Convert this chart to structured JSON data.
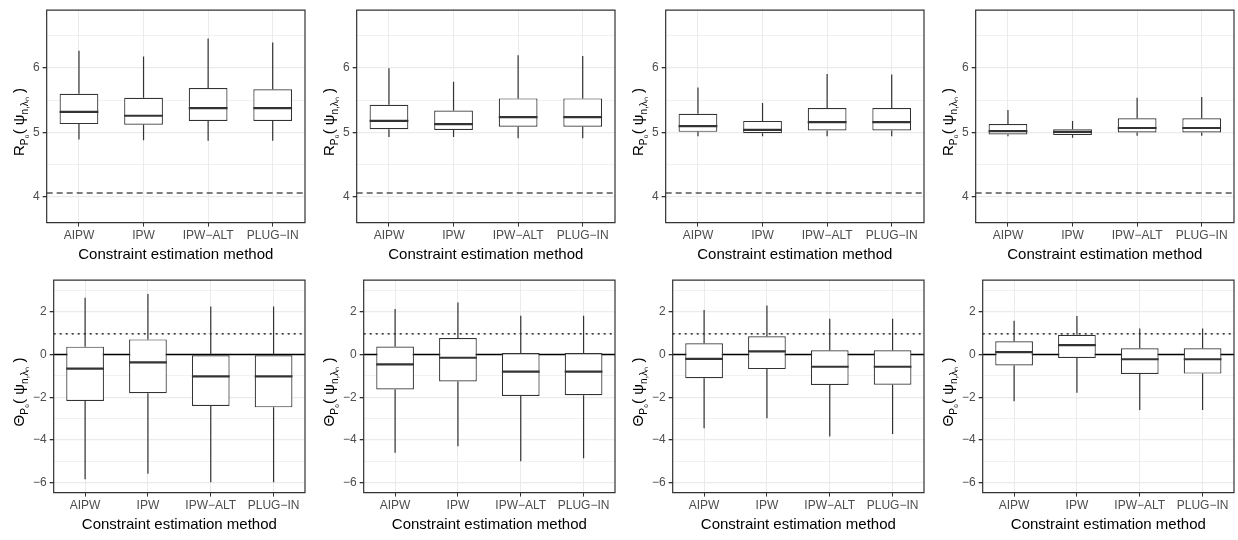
{
  "chart_data": [
    {
      "type": "box",
      "categories": [
        "AIPW",
        "IPW",
        "IPW−ALT",
        "PLUG−IN"
      ],
      "xlabel": "Constraint estimation method",
      "ylabel": "R$_{P₀}$( ψ$_{n,λₙ}$ )",
      "ylim": [
        3.6,
        6.9
      ],
      "yticks": [
        4,
        {
          "value": 4.5,
          "label": null
        },
        5,
        {
          "value": 5.5,
          "label": null
        },
        6,
        {
          "value": 6.5,
          "label": null
        }
      ],
      "grid": true,
      "boxes": [
        {
          "low": 4.89,
          "q1": 5.13,
          "median": 5.32,
          "q3": 5.6,
          "high": 6.27
        },
        {
          "low": 4.88,
          "q1": 5.12,
          "median": 5.26,
          "q3": 5.54,
          "high": 6.18
        },
        {
          "low": 4.87,
          "q1": 5.18,
          "median": 5.38,
          "q3": 5.69,
          "high": 6.46
        },
        {
          "low": 4.87,
          "q1": 5.18,
          "median": 5.38,
          "q3": 5.67,
          "high": 6.4
        }
      ],
      "ref_lines": [
        {
          "axis": "y",
          "value": 4.06,
          "label": null,
          "color": "#000000",
          "line_style": "dashed"
        }
      ]
    },
    {
      "type": "box",
      "categories": [
        "AIPW",
        "IPW",
        "IPW−ALT",
        "PLUG−IN"
      ],
      "xlabel": "Constraint estimation method",
      "ylabel": "R$_{P₀}$( ψ$_{n,λₙ}$ )",
      "ylim": [
        3.6,
        6.9
      ],
      "yticks": [
        4,
        {
          "value": 4.5,
          "label": null
        },
        5,
        {
          "value": 5.5,
          "label": null
        },
        6,
        {
          "value": 6.5,
          "label": null
        }
      ],
      "grid": true,
      "boxes": [
        {
          "low": 4.93,
          "q1": 5.05,
          "median": 5.18,
          "q3": 5.43,
          "high": 6.0
        },
        {
          "low": 4.93,
          "q1": 5.04,
          "median": 5.13,
          "q3": 5.34,
          "high": 5.79
        },
        {
          "low": 4.91,
          "q1": 5.09,
          "median": 5.24,
          "q3": 5.53,
          "high": 6.2
        },
        {
          "low": 4.91,
          "q1": 5.09,
          "median": 5.24,
          "q3": 5.53,
          "high": 6.19
        }
      ],
      "ref_lines": [
        {
          "axis": "y",
          "value": 4.06,
          "label": null,
          "color": "#000000",
          "line_style": "dashed"
        }
      ]
    },
    {
      "type": "box",
      "categories": [
        "AIPW",
        "IPW",
        "IPW−ALT",
        "PLUG−IN"
      ],
      "xlabel": "Constraint estimation method",
      "ylabel": "R$_{P₀}$( ψ$_{n,λₙ}$ )",
      "ylim": [
        3.6,
        6.9
      ],
      "yticks": [
        4,
        {
          "value": 4.5,
          "label": null
        },
        5,
        {
          "value": 5.5,
          "label": null
        },
        6,
        {
          "value": 6.5,
          "label": null
        }
      ],
      "grid": true,
      "boxes": [
        {
          "low": 4.94,
          "q1": 5.01,
          "median": 5.1,
          "q3": 5.29,
          "high": 5.7
        },
        {
          "low": 4.94,
          "q1": 4.99,
          "median": 5.04,
          "q3": 5.18,
          "high": 5.46
        },
        {
          "low": 4.94,
          "q1": 5.03,
          "median": 5.16,
          "q3": 5.38,
          "high": 5.91
        },
        {
          "low": 4.94,
          "q1": 5.03,
          "median": 5.16,
          "q3": 5.38,
          "high": 5.9
        }
      ],
      "ref_lines": [
        {
          "axis": "y",
          "value": 4.06,
          "label": null,
          "color": "#000000",
          "line_style": "dashed"
        }
      ]
    },
    {
      "type": "box",
      "categories": [
        "AIPW",
        "IPW",
        "IPW−ALT",
        "PLUG−IN"
      ],
      "xlabel": "Constraint estimation method",
      "ylabel": "R$_{P₀}$( ψ$_{n,λₙ}$ )",
      "ylim": [
        3.6,
        6.9
      ],
      "yticks": [
        4,
        {
          "value": 4.5,
          "label": null
        },
        5,
        {
          "value": 5.5,
          "label": null
        },
        6,
        {
          "value": 6.5,
          "label": null
        }
      ],
      "grid": true,
      "boxes": [
        {
          "low": 4.94,
          "q1": 4.97,
          "median": 5.02,
          "q3": 5.13,
          "high": 5.35
        },
        {
          "low": 4.92,
          "q1": 4.96,
          "median": 5.01,
          "q3": 5.05,
          "high": 5.18
        },
        {
          "low": 4.95,
          "q1": 5.0,
          "median": 5.07,
          "q3": 5.22,
          "high": 5.54
        },
        {
          "low": 4.95,
          "q1": 5.0,
          "median": 5.07,
          "q3": 5.22,
          "high": 5.55
        }
      ],
      "ref_lines": [
        {
          "axis": "y",
          "value": 4.06,
          "label": null,
          "color": "#000000",
          "line_style": "dashed"
        }
      ]
    },
    {
      "type": "box",
      "categories": [
        "AIPW",
        "IPW",
        "IPW−ALT",
        "PLUG−IN"
      ],
      "xlabel": "Constraint estimation method",
      "ylabel": "Θ$_{P₀}$( ψ$_{n,λₙ}$ )",
      "ylim": [
        -6.46,
        3.48
      ],
      "yticks": [
        -6,
        {
          "value": -5,
          "label": null
        },
        -4,
        {
          "value": -3,
          "label": null
        },
        -2,
        {
          "value": -1,
          "label": null
        },
        0,
        {
          "value": 1,
          "label": null
        },
        2,
        {
          "value": 3,
          "label": null
        }
      ],
      "grid": true,
      "boxes": [
        {
          "low": -5.83,
          "q1": -2.17,
          "median": -0.66,
          "q3": 0.37,
          "high": 2.66
        },
        {
          "low": -5.58,
          "q1": -1.81,
          "median": -0.37,
          "q3": 0.71,
          "high": 2.84
        },
        {
          "low": -5.97,
          "q1": -2.41,
          "median": -1.02,
          "q3": 0.0,
          "high": 2.25
        },
        {
          "low": -5.97,
          "q1": -2.47,
          "median": -1.02,
          "q3": 0.0,
          "high": 2.25
        }
      ],
      "ref_lines": [
        {
          "axis": "y",
          "value": 0.97,
          "label": null,
          "color": "#000000",
          "line_style": "dotted"
        },
        {
          "axis": "y",
          "value": 0,
          "label": null,
          "color": "#000000",
          "line_style": "solid"
        }
      ]
    },
    {
      "type": "box",
      "categories": [
        "AIPW",
        "IPW",
        "IPW−ALT",
        "PLUG−IN"
      ],
      "xlabel": "Constraint estimation method",
      "ylabel": "Θ$_{P₀}$( ψ$_{n,λₙ}$ )",
      "ylim": [
        -6.46,
        3.48
      ],
      "yticks": [
        -6,
        {
          "value": -5,
          "label": null
        },
        -4,
        {
          "value": -3,
          "label": null
        },
        -2,
        {
          "value": -1,
          "label": null
        },
        0,
        {
          "value": 1,
          "label": null
        },
        2,
        {
          "value": 3,
          "label": null
        }
      ],
      "grid": true,
      "boxes": [
        {
          "low": -4.6,
          "q1": -1.63,
          "median": -0.46,
          "q3": 0.38,
          "high": 2.13
        },
        {
          "low": -4.29,
          "q1": -1.26,
          "median": -0.15,
          "q3": 0.77,
          "high": 2.44
        },
        {
          "low": -4.99,
          "q1": -1.94,
          "median": -0.8,
          "q3": 0.07,
          "high": 1.82
        },
        {
          "low": -4.85,
          "q1": -1.9,
          "median": -0.8,
          "q3": 0.07,
          "high": 1.82
        }
      ],
      "ref_lines": [
        {
          "axis": "y",
          "value": 0.97,
          "label": null,
          "color": "#000000",
          "line_style": "dotted"
        },
        {
          "axis": "y",
          "value": 0,
          "label": null,
          "color": "#000000",
          "line_style": "solid"
        }
      ]
    },
    {
      "type": "box",
      "categories": [
        "AIPW",
        "IPW",
        "IPW−ALT",
        "PLUG−IN"
      ],
      "xlabel": "Constraint estimation method",
      "ylabel": "Θ$_{P₀}$( ψ$_{n,λₙ}$ )",
      "ylim": [
        -6.46,
        3.48
      ],
      "yticks": [
        -6,
        {
          "value": -5,
          "label": null
        },
        -4,
        {
          "value": -3,
          "label": null
        },
        -2,
        {
          "value": -1,
          "label": null
        },
        0,
        {
          "value": 1,
          "label": null
        },
        2,
        {
          "value": 3,
          "label": null
        }
      ],
      "grid": true,
      "boxes": [
        {
          "low": -3.45,
          "q1": -1.11,
          "median": -0.2,
          "q3": 0.53,
          "high": 2.08
        },
        {
          "low": -2.98,
          "q1": -0.68,
          "median": 0.15,
          "q3": 0.86,
          "high": 2.3
        },
        {
          "low": -3.84,
          "q1": -1.42,
          "median": -0.57,
          "q3": 0.2,
          "high": 1.68
        },
        {
          "low": -3.72,
          "q1": -1.41,
          "median": -0.57,
          "q3": 0.2,
          "high": 1.68
        }
      ],
      "ref_lines": [
        {
          "axis": "y",
          "value": 0.97,
          "label": null,
          "color": "#000000",
          "line_style": "dotted"
        },
        {
          "axis": "y",
          "value": 0,
          "label": null,
          "color": "#000000",
          "line_style": "solid"
        }
      ]
    },
    {
      "type": "box",
      "categories": [
        "AIPW",
        "IPW",
        "IPW−ALT",
        "PLUG−IN"
      ],
      "xlabel": "Constraint estimation method",
      "ylabel": "Θ$_{P₀}$( ψ$_{n,λₙ}$ )",
      "ylim": [
        -6.46,
        3.48
      ],
      "yticks": [
        -6,
        {
          "value": -5,
          "label": null
        },
        -4,
        {
          "value": -3,
          "label": null
        },
        -2,
        {
          "value": -1,
          "label": null
        },
        0,
        {
          "value": 1,
          "label": null
        },
        2,
        {
          "value": 3,
          "label": null
        }
      ],
      "grid": true,
      "boxes": [
        {
          "low": -2.19,
          "q1": -0.51,
          "median": 0.11,
          "q3": 0.62,
          "high": 1.58
        },
        {
          "low": -1.79,
          "q1": -0.16,
          "median": 0.44,
          "q3": 0.93,
          "high": 1.81
        },
        {
          "low": -2.59,
          "q1": -0.91,
          "median": -0.22,
          "q3": 0.29,
          "high": 1.22
        },
        {
          "low": -2.59,
          "q1": -0.89,
          "median": -0.22,
          "q3": 0.29,
          "high": 1.22
        }
      ],
      "ref_lines": [
        {
          "axis": "y",
          "value": 0.97,
          "label": null,
          "color": "#000000",
          "line_style": "dotted"
        },
        {
          "axis": "y",
          "value": 0,
          "label": null,
          "color": "#000000",
          "line_style": "solid"
        }
      ]
    }
  ]
}
